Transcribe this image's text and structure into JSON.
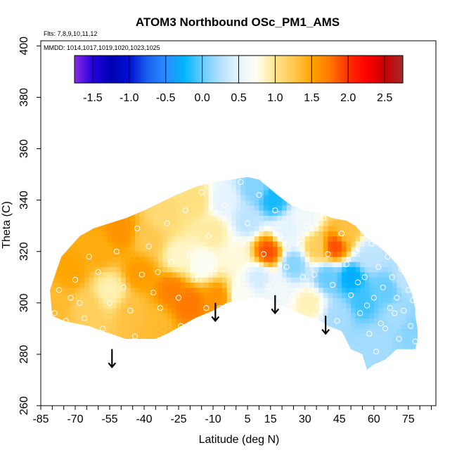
{
  "chart_data": {
    "type": "heatmap",
    "title": "ATOM3 Northbound OSc_PM1_AMS",
    "flights_label": "Flts: 7,8,9,10,11,12",
    "mmdd_label": "MMDD: 1014,1017,1019,1020,1023,1025",
    "xlabel": "Latitude (deg N)",
    "ylabel": "Theta (C)",
    "xlim": [
      -85,
      87
    ],
    "ylim": [
      260,
      402
    ],
    "x_ticks": [
      -85,
      -80,
      -75,
      -70,
      -65,
      -60,
      -55,
      -50,
      -45,
      -40,
      -35,
      -30,
      -25,
      -20,
      -15,
      -10,
      -5,
      0,
      5,
      10,
      15,
      20,
      25,
      30,
      35,
      40,
      45,
      50,
      55,
      60,
      65,
      70,
      75,
      80,
      85
    ],
    "x_tick_labels": [
      "-85",
      "-70",
      "-55",
      "-40",
      "-25",
      "-10",
      "5",
      "15",
      "30",
      "45",
      "60",
      "75"
    ],
    "x_tick_label_values": [
      -85,
      -70,
      -55,
      -40,
      -25,
      -10,
      5,
      15,
      30,
      45,
      60,
      75
    ],
    "y_ticks": [
      260,
      280,
      300,
      320,
      340,
      360,
      380,
      400
    ],
    "y_tick_labels": [
      "260",
      "280",
      "300",
      "320",
      "340",
      "360",
      "380",
      "400"
    ],
    "colorbar": {
      "min": -1.75,
      "max": 2.75,
      "boundaries": [
        -1.75,
        -1.5,
        -1.0,
        -0.5,
        0.0,
        0.5,
        1.0,
        1.5,
        2.0,
        2.5,
        2.75
      ],
      "tick_labels": [
        "-1.5",
        "-1.0",
        "-0.5",
        "0.0",
        "0.5",
        "1.0",
        "1.5",
        "2.0",
        "2.5"
      ],
      "tick_values": [
        -1.5,
        -1.0,
        -0.5,
        0.0,
        0.5,
        1.0,
        1.5,
        2.0,
        2.5
      ],
      "stops": [
        {
          "value": -1.75,
          "color": "#8a2be2"
        },
        {
          "value": -1.5,
          "color": "#2400e0"
        },
        {
          "value": -1.25,
          "color": "#0000b0"
        },
        {
          "value": -1.0,
          "color": "#0010d0"
        },
        {
          "value": -0.75,
          "color": "#1a60f0"
        },
        {
          "value": -0.5,
          "color": "#2a8cff"
        },
        {
          "value": -0.25,
          "color": "#00b4ff"
        },
        {
          "value": 0.0,
          "color": "#66ccff"
        },
        {
          "value": 0.25,
          "color": "#b4e0ff"
        },
        {
          "value": 0.5,
          "color": "#e6f4ff"
        },
        {
          "value": 0.75,
          "color": "#fffff0"
        },
        {
          "value": 1.0,
          "color": "#ffe68c"
        },
        {
          "value": 1.25,
          "color": "#ffc850"
        },
        {
          "value": 1.5,
          "color": "#ffa500"
        },
        {
          "value": 1.75,
          "color": "#ff7800"
        },
        {
          "value": 2.0,
          "color": "#ff3000"
        },
        {
          "value": 2.25,
          "color": "#ff0000"
        },
        {
          "value": 2.5,
          "color": "#c80000"
        },
        {
          "value": 2.75,
          "color": "#a52a2a"
        }
      ]
    },
    "field_boundary": [
      [
        -80,
        295
      ],
      [
        -81,
        305
      ],
      [
        -78,
        313
      ],
      [
        -76,
        318
      ],
      [
        -72,
        322
      ],
      [
        -68,
        326
      ],
      [
        -62,
        329
      ],
      [
        -55,
        331
      ],
      [
        -48,
        333
      ],
      [
        -40,
        336
      ],
      [
        -33,
        339
      ],
      [
        -26,
        342
      ],
      [
        -18,
        345
      ],
      [
        -10,
        347
      ],
      [
        -2,
        348
      ],
      [
        5,
        349
      ],
      [
        10,
        348
      ],
      [
        14,
        345
      ],
      [
        18,
        342
      ],
      [
        24,
        338
      ],
      [
        30,
        336
      ],
      [
        36,
        335
      ],
      [
        42,
        333
      ],
      [
        48,
        332
      ],
      [
        52,
        330
      ],
      [
        56,
        326
      ],
      [
        62,
        322
      ],
      [
        66,
        319
      ],
      [
        70,
        315
      ],
      [
        72,
        312
      ],
      [
        74,
        309
      ],
      [
        76,
        305
      ],
      [
        77,
        302
      ],
      [
        78,
        298
      ],
      [
        78,
        295
      ],
      [
        79,
        290
      ],
      [
        79,
        285
      ],
      [
        78,
        282
      ],
      [
        70,
        282
      ],
      [
        65,
        278
      ],
      [
        60,
        276
      ],
      [
        57,
        274
      ],
      [
        55,
        280
      ],
      [
        50,
        282
      ],
      [
        46,
        289
      ],
      [
        40,
        291
      ],
      [
        35,
        294
      ],
      [
        30,
        295
      ],
      [
        25,
        297
      ],
      [
        20,
        299
      ],
      [
        15,
        301
      ],
      [
        11,
        302
      ],
      [
        7,
        302
      ],
      [
        2,
        301
      ],
      [
        -4,
        300
      ],
      [
        -10,
        297
      ],
      [
        -18,
        294
      ],
      [
        -26,
        290
      ],
      [
        -30,
        288
      ],
      [
        -35,
        286
      ],
      [
        -48,
        286
      ],
      [
        -58,
        289
      ],
      [
        -64,
        291
      ],
      [
        -70,
        292
      ],
      [
        -75,
        293
      ],
      [
        -80,
        295
      ]
    ],
    "field_samples": [
      {
        "lat": -78,
        "theta": 300,
        "value": 1.35
      },
      {
        "lat": -72,
        "theta": 312,
        "value": 1.5
      },
      {
        "lat": -65,
        "theta": 298,
        "value": 1.2
      },
      {
        "lat": -60,
        "theta": 320,
        "value": 1.45
      },
      {
        "lat": -55,
        "theta": 305,
        "value": 0.9
      },
      {
        "lat": -50,
        "theta": 328,
        "value": 1.6
      },
      {
        "lat": -45,
        "theta": 296,
        "value": 1.3
      },
      {
        "lat": -42,
        "theta": 312,
        "value": 1.55
      },
      {
        "lat": -38,
        "theta": 325,
        "value": 1.25
      },
      {
        "lat": -35,
        "theta": 292,
        "value": 1.35
      },
      {
        "lat": -32,
        "theta": 334,
        "value": 1.1
      },
      {
        "lat": -28,
        "theta": 305,
        "value": 1.7
      },
      {
        "lat": -25,
        "theta": 318,
        "value": 0.85
      },
      {
        "lat": -20,
        "theta": 300,
        "value": 1.75
      },
      {
        "lat": -18,
        "theta": 340,
        "value": 1.05
      },
      {
        "lat": -15,
        "theta": 315,
        "value": 0.7
      },
      {
        "lat": -10,
        "theta": 328,
        "value": 0.95
      },
      {
        "lat": -8,
        "theta": 302,
        "value": 1.6
      },
      {
        "lat": -5,
        "theta": 340,
        "value": 0.5
      },
      {
        "lat": 0,
        "theta": 318,
        "value": 0.8
      },
      {
        "lat": 2,
        "theta": 303,
        "value": 0.7
      },
      {
        "lat": 5,
        "theta": 332,
        "value": 0.3
      },
      {
        "lat": 8,
        "theta": 345,
        "value": 0.1
      },
      {
        "lat": 10,
        "theta": 310,
        "value": 0.4
      },
      {
        "lat": 14,
        "theta": 320,
        "value": 1.9
      },
      {
        "lat": 16,
        "theta": 340,
        "value": -0.2
      },
      {
        "lat": 18,
        "theta": 305,
        "value": 0.6
      },
      {
        "lat": 22,
        "theta": 328,
        "value": 0.5
      },
      {
        "lat": 25,
        "theta": 315,
        "value": 0.1
      },
      {
        "lat": 30,
        "theta": 332,
        "value": 0.6
      },
      {
        "lat": 32,
        "theta": 300,
        "value": 0.9
      },
      {
        "lat": 35,
        "theta": 322,
        "value": 1.2
      },
      {
        "lat": 40,
        "theta": 310,
        "value": 0.0
      },
      {
        "lat": 43,
        "theta": 322,
        "value": 1.9
      },
      {
        "lat": 45,
        "theta": 295,
        "value": 0.2
      },
      {
        "lat": 48,
        "theta": 328,
        "value": 1.3
      },
      {
        "lat": 50,
        "theta": 310,
        "value": -0.3
      },
      {
        "lat": 55,
        "theta": 300,
        "value": -0.1
      },
      {
        "lat": 58,
        "theta": 318,
        "value": 0.3
      },
      {
        "lat": 60,
        "theta": 285,
        "value": 0.2
      },
      {
        "lat": 65,
        "theta": 305,
        "value": 0.0
      },
      {
        "lat": 70,
        "theta": 295,
        "value": 0.2
      },
      {
        "lat": 74,
        "theta": 310,
        "value": 0.3
      },
      {
        "lat": 77,
        "theta": 290,
        "value": 0.1
      }
    ],
    "sample_points": [
      [
        -79,
        296
      ],
      [
        -77,
        305
      ],
      [
        -74,
        293
      ],
      [
        -70,
        309
      ],
      [
        -68,
        300
      ],
      [
        -66,
        294
      ],
      [
        -64,
        318
      ],
      [
        -60,
        312
      ],
      [
        -58,
        290
      ],
      [
        -55,
        300
      ],
      [
        -52,
        320
      ],
      [
        -49,
        306
      ],
      [
        -46,
        297
      ],
      [
        -43,
        329
      ],
      [
        -41,
        311
      ],
      [
        -38,
        322
      ],
      [
        -36,
        304
      ],
      [
        -33,
        298
      ],
      [
        -30,
        331
      ],
      [
        -28,
        316
      ],
      [
        -25,
        302
      ],
      [
        -22,
        336
      ],
      [
        -20,
        319
      ],
      [
        -18,
        309
      ],
      [
        -15,
        343
      ],
      [
        -12,
        326
      ],
      [
        -10,
        312
      ],
      [
        -7,
        298
      ],
      [
        -5,
        338
      ],
      [
        -2,
        322
      ],
      [
        0,
        308
      ],
      [
        2,
        347
      ],
      [
        5,
        331
      ],
      [
        8,
        301
      ],
      [
        10,
        342
      ],
      [
        12,
        319
      ],
      [
        14,
        306
      ],
      [
        17,
        336
      ],
      [
        19,
        326
      ],
      [
        22,
        314
      ],
      [
        24,
        302
      ],
      [
        26,
        339
      ],
      [
        28,
        323
      ],
      [
        31,
        330
      ],
      [
        34,
        311
      ],
      [
        36,
        299
      ],
      [
        38,
        333
      ],
      [
        40,
        319
      ],
      [
        42,
        307
      ],
      [
        44,
        293
      ],
      [
        46,
        327
      ],
      [
        48,
        315
      ],
      [
        50,
        303
      ],
      [
        52,
        320
      ],
      [
        54,
        296
      ],
      [
        56,
        310
      ],
      [
        58,
        288
      ],
      [
        59,
        323
      ],
      [
        60,
        302
      ],
      [
        62,
        314
      ],
      [
        63,
        292
      ],
      [
        64,
        306
      ],
      [
        66,
        318
      ],
      [
        67,
        298
      ],
      [
        68,
        310
      ],
      [
        70,
        302
      ],
      [
        71,
        286
      ],
      [
        72,
        313
      ],
      [
        73,
        297
      ],
      [
        75,
        305
      ],
      [
        76,
        291
      ],
      [
        77,
        301
      ],
      [
        78,
        285
      ],
      [
        -72,
        302
      ],
      [
        -44,
        287
      ],
      [
        -34,
        312
      ],
      [
        -24,
        291
      ],
      [
        -13,
        298
      ],
      [
        3,
        323
      ],
      [
        20,
        345
      ],
      [
        29,
        310
      ],
      [
        37,
        288
      ],
      [
        45,
        335
      ],
      [
        53,
        308
      ],
      [
        57,
        299
      ],
      [
        61,
        281
      ],
      [
        65,
        290
      ],
      [
        69,
        296
      ]
    ],
    "arrows": [
      {
        "lat": -54,
        "theta_top": 282,
        "theta_bottom": 275
      },
      {
        "lat": -9,
        "theta_top": 300,
        "theta_bottom": 293
      },
      {
        "lat": 17,
        "theta_top": 303,
        "theta_bottom": 296
      },
      {
        "lat": 39,
        "theta_top": 295,
        "theta_bottom": 288
      }
    ]
  }
}
